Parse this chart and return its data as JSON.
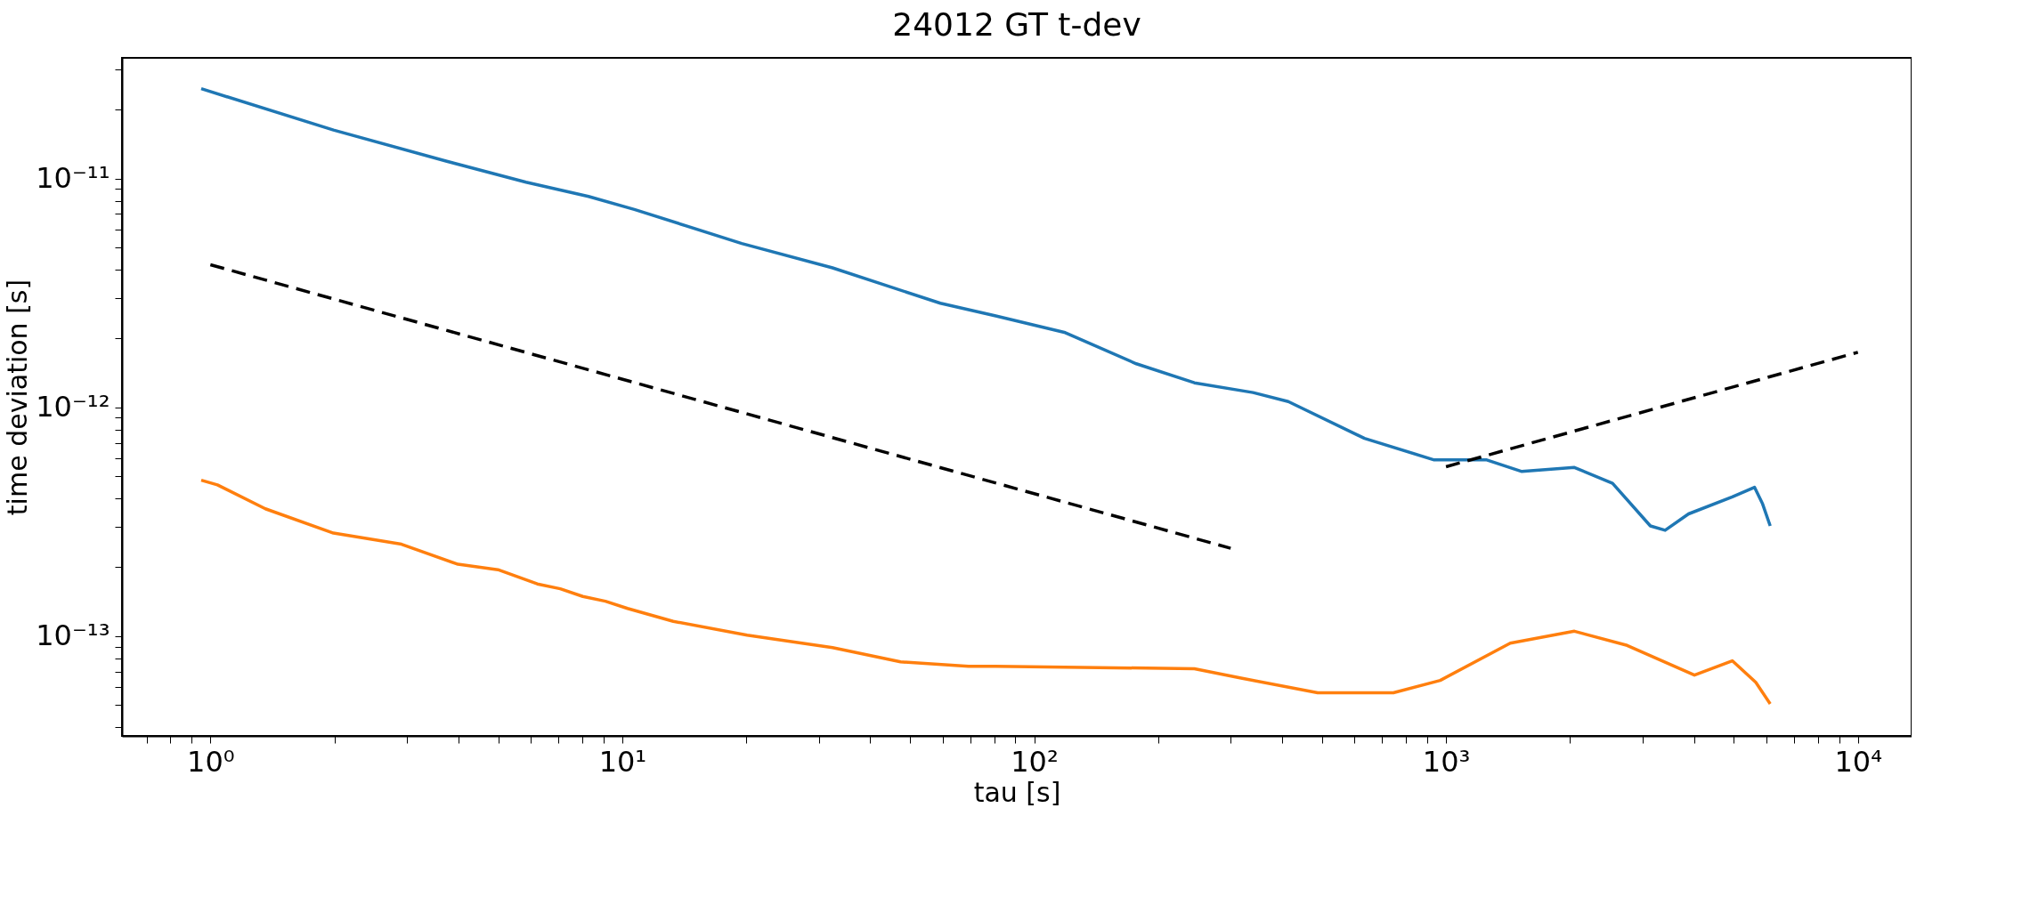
{
  "chart_data": {
    "type": "line",
    "title": "24012 GT t-dev",
    "xlabel": "tau  [s]",
    "ylabel": "time deviation  [s]",
    "log": "xy",
    "grid": false,
    "xlim": [
      0.61,
      13500
    ],
    "ylim": [
      3.66e-14,
      3.37e-11
    ],
    "xticks": [
      {
        "value": 0.7,
        "label": null
      },
      {
        "value": 0.8,
        "label": null
      },
      {
        "value": 0.9,
        "label": null
      },
      {
        "value": 1,
        "label": "10⁰"
      },
      {
        "value": 2,
        "label": null
      },
      {
        "value": 3,
        "label": null
      },
      {
        "value": 4,
        "label": null
      },
      {
        "value": 5,
        "label": null
      },
      {
        "value": 6,
        "label": null
      },
      {
        "value": 7,
        "label": null
      },
      {
        "value": 8,
        "label": null
      },
      {
        "value": 9,
        "label": null
      },
      {
        "value": 10,
        "label": "10¹"
      },
      {
        "value": 20,
        "label": null
      },
      {
        "value": 30,
        "label": null
      },
      {
        "value": 40,
        "label": null
      },
      {
        "value": 50,
        "label": null
      },
      {
        "value": 60,
        "label": null
      },
      {
        "value": 70,
        "label": null
      },
      {
        "value": 80,
        "label": null
      },
      {
        "value": 90,
        "label": null
      },
      {
        "value": 100,
        "label": "10²"
      },
      {
        "value": 200,
        "label": null
      },
      {
        "value": 300,
        "label": null
      },
      {
        "value": 400,
        "label": null
      },
      {
        "value": 500,
        "label": null
      },
      {
        "value": 600,
        "label": null
      },
      {
        "value": 700,
        "label": null
      },
      {
        "value": 800,
        "label": null
      },
      {
        "value": 900,
        "label": null
      },
      {
        "value": 1000,
        "label": "10³"
      },
      {
        "value": 2000,
        "label": null
      },
      {
        "value": 3000,
        "label": null
      },
      {
        "value": 4000,
        "label": null
      },
      {
        "value": 5000,
        "label": null
      },
      {
        "value": 6000,
        "label": null
      },
      {
        "value": 7000,
        "label": null
      },
      {
        "value": 8000,
        "label": null
      },
      {
        "value": 9000,
        "label": null
      },
      {
        "value": 10000,
        "label": "10⁴"
      }
    ],
    "yticks": [
      {
        "value": 4e-14,
        "label": null
      },
      {
        "value": 5e-14,
        "label": null
      },
      {
        "value": 6e-14,
        "label": null
      },
      {
        "value": 7e-14,
        "label": null
      },
      {
        "value": 8e-14,
        "label": null
      },
      {
        "value": 9e-14,
        "label": null
      },
      {
        "value": 1e-13,
        "label": "10⁻¹³"
      },
      {
        "value": 2e-13,
        "label": null
      },
      {
        "value": 3e-13,
        "label": null
      },
      {
        "value": 4e-13,
        "label": null
      },
      {
        "value": 5e-13,
        "label": null
      },
      {
        "value": 6e-13,
        "label": null
      },
      {
        "value": 7e-13,
        "label": null
      },
      {
        "value": 8e-13,
        "label": null
      },
      {
        "value": 9e-13,
        "label": null
      },
      {
        "value": 1e-12,
        "label": "10⁻¹²"
      },
      {
        "value": 2e-12,
        "label": null
      },
      {
        "value": 3e-12,
        "label": null
      },
      {
        "value": 4e-12,
        "label": null
      },
      {
        "value": 5e-12,
        "label": null
      },
      {
        "value": 6e-12,
        "label": null
      },
      {
        "value": 7e-12,
        "label": null
      },
      {
        "value": 8e-12,
        "label": null
      },
      {
        "value": 9e-12,
        "label": null
      },
      {
        "value": 1e-11,
        "label": "10⁻¹¹"
      },
      {
        "value": 2e-11,
        "label": null
      },
      {
        "value": 3e-11,
        "label": null
      }
    ],
    "series": [
      {
        "color": "#1f77b4",
        "line_style": "solid",
        "x": [
          0.95,
          1.99,
          3.75,
          5.84,
          8.28,
          10.7,
          19.5,
          32.4,
          59.2,
          80.7,
          119,
          177,
          245,
          340,
          414,
          634,
          936,
          1256,
          1528,
          2050,
          2537,
          3134,
          3404,
          3880,
          4955,
          5610,
          5870,
          6125
        ],
        "values": [
          2.47e-11,
          1.63e-11,
          1.19e-11,
          9.64e-12,
          8.35e-12,
          7.33e-12,
          5.2e-12,
          4.07e-12,
          2.85e-12,
          2.51e-12,
          2.12e-12,
          1.55e-12,
          1.28e-12,
          1.16e-12,
          1.06e-12,
          7.31e-13,
          5.89e-13,
          5.89e-13,
          5.24e-13,
          5.46e-13,
          4.65e-13,
          3.03e-13,
          2.9e-13,
          3.42e-13,
          4.06e-13,
          4.47e-13,
          3.78e-13,
          3.03e-13
        ]
      },
      {
        "color": "#ff7f0e",
        "line_style": "solid",
        "x": [
          0.95,
          1.04,
          1.36,
          1.99,
          2.91,
          3.99,
          4.99,
          6.22,
          7.07,
          8.02,
          9.1,
          10.3,
          13.3,
          20.1,
          32.4,
          47.4,
          69.3,
          80.7,
          245,
          318,
          488,
          745,
          968,
          1432,
          2050,
          2753,
          4010,
          4955,
          5650,
          6125
        ],
        "values": [
          4.8e-13,
          4.58e-13,
          3.6e-13,
          2.82e-13,
          2.52e-13,
          2.06e-13,
          1.95e-13,
          1.69e-13,
          1.61e-13,
          1.49e-13,
          1.42e-13,
          1.32e-13,
          1.16e-13,
          1.01e-13,
          8.91e-14,
          7.71e-14,
          7.37e-14,
          7.37e-14,
          7.2e-14,
          6.55e-14,
          5.65e-14,
          5.65e-14,
          6.4e-14,
          9.31e-14,
          1.05e-13,
          9.1e-14,
          6.75e-14,
          7.8e-14,
          6.28e-14,
          5.05e-14
        ]
      },
      {
        "color": "#000000",
        "line_style": "dashed",
        "x": [
          1,
          300
        ],
        "values": [
          4.2e-12,
          2.42e-13
        ]
      },
      {
        "color": "#000000",
        "line_style": "dashed",
        "x": [
          1000,
          10000
        ],
        "values": [
          5.5e-13,
          1.74e-12
        ]
      }
    ]
  }
}
